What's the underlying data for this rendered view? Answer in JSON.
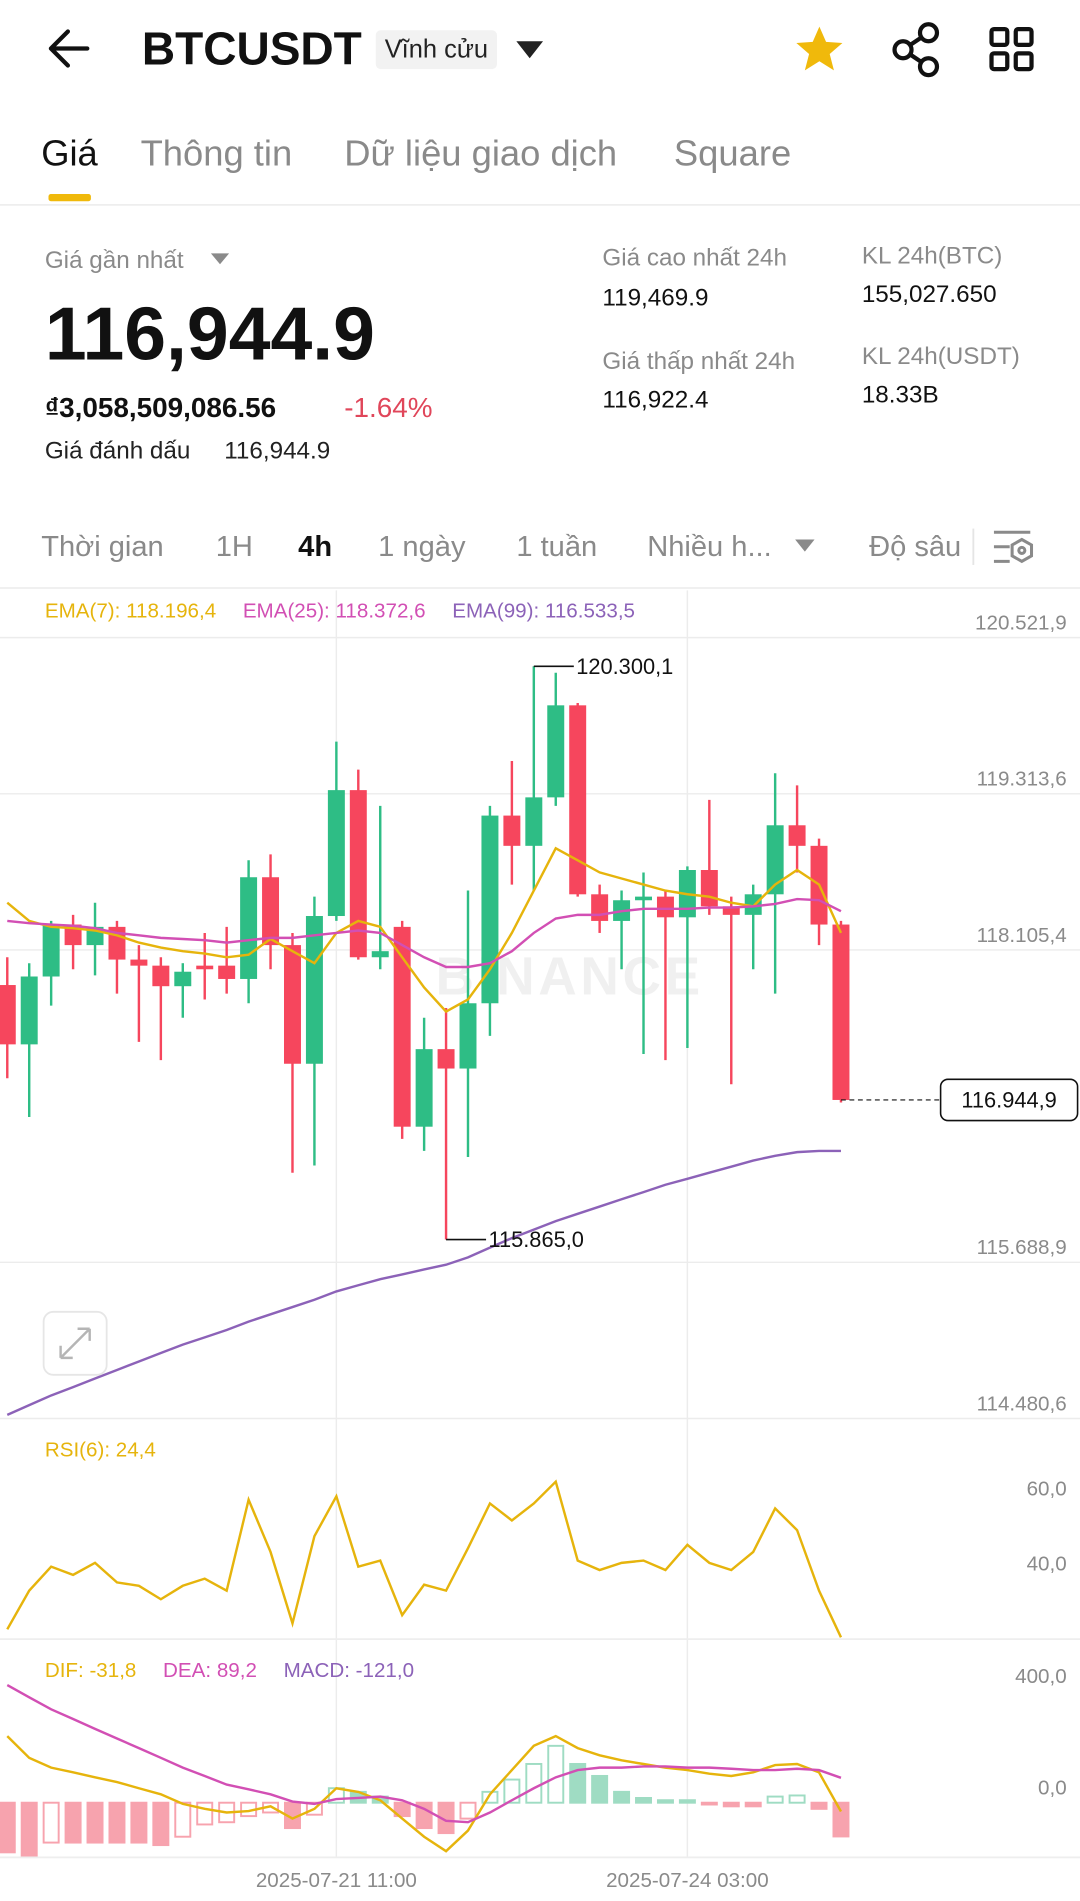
{
  "header": {
    "title": "BTCUSDT",
    "badge": "Vĩnh cửu"
  },
  "tabs": [
    "Giá",
    "Thông tin",
    "Dữ liệu giao dịch",
    "Square"
  ],
  "price": {
    "label": "Giá gần nhất",
    "last": "116,944.9",
    "fiat": "₫3,058,509,086.56",
    "change": "-1.64%",
    "mark_label": "Giá đánh dấu",
    "mark": "116,944.9"
  },
  "stats": [
    {
      "label": "Giá cao nhất 24h",
      "value": "119,469.9"
    },
    {
      "label": "Giá thấp nhất 24h",
      "value": "116,922.4"
    },
    {
      "label": "KL 24h(BTC)",
      "value": "155,027.650"
    },
    {
      "label": "KL 24h(USDT)",
      "value": "18.33B"
    }
  ],
  "intervals": [
    "Thời gian",
    "1H",
    "4h",
    "1 ngày",
    "1 tuần",
    "Nhiều h...",
    "Độ sâu"
  ],
  "chart_data": [
    {
      "type": "candlestick",
      "watermark": "BINANCE",
      "up_color": "#2ebd85",
      "down_color": "#f6465d",
      "categories": [
        null,
        null,
        null,
        null,
        null,
        null,
        null,
        null,
        null,
        null,
        null,
        null,
        null,
        null,
        null,
        "2025-07-21 11:00",
        null,
        null,
        null,
        null,
        null,
        null,
        null,
        null,
        null,
        null,
        null,
        null,
        null,
        null,
        null,
        "2025-07-24 03:00",
        null,
        null,
        null,
        null,
        null,
        null,
        null
      ],
      "open": [
        117834,
        117375,
        117900,
        118302,
        118143,
        118284,
        118031,
        117984,
        117825,
        117984,
        117984,
        117881,
        118668,
        118143,
        117225,
        118368,
        119342,
        118049,
        118284,
        116738,
        117338,
        117188,
        117693,
        119145,
        118911,
        119286,
        119998,
        118536,
        118330,
        118490,
        118518,
        118358,
        118724,
        118443,
        118377,
        118536,
        119070,
        118911,
        118302
      ],
      "high": [
        118049,
        118003,
        118330,
        118377,
        118471,
        118330,
        118143,
        118049,
        118003,
        118237,
        118284,
        118799,
        118845,
        118237,
        118518,
        119717,
        119501,
        119220,
        118330,
        117581,
        117656,
        118565,
        119220,
        119567,
        120300.1,
        120250,
        120016,
        118611,
        118565,
        118705,
        118565,
        118752,
        119267,
        118518,
        118611,
        119473,
        119379,
        118967,
        118330
      ],
      "low": [
        117113,
        116813,
        117675,
        117956,
        117909,
        117768,
        117394,
        117253,
        117581,
        117722,
        117768,
        117693,
        117956,
        116382,
        116438,
        118330,
        118031,
        117956,
        116644,
        116551,
        115865.0,
        116504,
        117441,
        118611,
        118565,
        119220,
        118518,
        118237,
        117956,
        117300,
        117253,
        117347,
        118377,
        117066,
        117956,
        117768,
        118705,
        118143,
        116925
      ],
      "close": [
        117375,
        117900,
        118302,
        118143,
        118284,
        118031,
        117984,
        117825,
        117937,
        117956,
        117881,
        118668,
        118143,
        117225,
        118368,
        119342,
        118049,
        118096,
        116738,
        117338,
        117188,
        117693,
        119145,
        118911,
        119286,
        119998,
        118536,
        118330,
        118490,
        118518,
        118358,
        118724,
        118443,
        118377,
        118536,
        119070,
        118911,
        118302,
        116944.9
      ],
      "series": [
        {
          "name": "EMA(7): 118.196,4",
          "color": "#e6b40c",
          "values": [
            118471,
            118330,
            118284,
            118274,
            118256,
            118218,
            118162,
            118124,
            118096,
            118078,
            118049,
            118068,
            118190,
            118096,
            118003,
            118237,
            118330,
            118284,
            118049,
            117815,
            117628,
            117722,
            117956,
            118237,
            118565,
            118892,
            118799,
            118705,
            118658,
            118611,
            118565,
            118536,
            118518,
            118471,
            118443,
            118611,
            118724,
            118611,
            118237
          ]
        },
        {
          "name": "EMA(25): 118.372,6",
          "color": "#d24fb4",
          "values": [
            118330,
            118312,
            118302,
            118293,
            118274,
            118237,
            118218,
            118199,
            118190,
            118181,
            118162,
            118181,
            118199,
            118199,
            118218,
            118237,
            118256,
            118237,
            118143,
            118049,
            117974,
            117974,
            118003,
            118096,
            118237,
            118349,
            118377,
            118377,
            118405,
            118424,
            118424,
            118424,
            118433,
            118433,
            118443,
            118461,
            118499,
            118490,
            118405
          ]
        },
        {
          "name": "EMA(99): 116.533,5",
          "color": "#8c62b8",
          "values": [
            114509,
            114584,
            114659,
            114724,
            114790,
            114856,
            114921,
            114987,
            115052,
            115108,
            115165,
            115230,
            115286,
            115343,
            115399,
            115464,
            115511,
            115558,
            115595,
            115633,
            115670,
            115727,
            115802,
            115876,
            115942,
            116008,
            116064,
            116120,
            116176,
            116232,
            116289,
            116335,
            116382,
            116429,
            116476,
            116513,
            116541,
            116551,
            116551
          ]
        }
      ],
      "annotations": [
        {
          "value": 120300.1,
          "label": "120.300,1"
        },
        {
          "value": 115865.0,
          "label": "115.865,0"
        }
      ],
      "last_price": {
        "value": 116944.9,
        "label": "116.944,9"
      },
      "ylim": [
        114480.6,
        120887
      ],
      "yticks": [
        {
          "value": 120521.9,
          "label": "120.521,9"
        },
        {
          "value": 119313.6,
          "label": "119.313,6"
        },
        {
          "value": 118105.4,
          "label": "118.105,4"
        },
        {
          "value": 115688.9,
          "label": "115.688,9"
        },
        {
          "value": 114480.6,
          "label": "114.480,6"
        }
      ],
      "grid": true
    },
    {
      "type": "line",
      "series": [
        {
          "name": "RSI(6): 24,4",
          "color": "#e6b40c",
          "values": [
            26.5,
            36.8,
            43.2,
            41,
            44.2,
            39,
            38.1,
            34.5,
            38.1,
            40,
            36.8,
            61,
            47.1,
            28.1,
            51.3,
            61.9,
            43.2,
            44.8,
            30.3,
            38.4,
            36.8,
            48.1,
            60,
            55.5,
            60,
            65.8,
            44.8,
            42.3,
            44.2,
            44.8,
            42.3,
            49,
            44.2,
            42.3,
            47.1,
            58.7,
            52.9,
            36.8,
            24.4
          ]
        }
      ],
      "ylim": [
        23.9,
        79.4
      ],
      "yticks": [
        {
          "value": 60,
          "label": "60,0"
        },
        {
          "value": 40,
          "label": "40,0"
        }
      ],
      "grid": false
    },
    {
      "type": "macd",
      "up_color": "#9fdcc3",
      "down_color": "#f7a3ae",
      "series": [
        {
          "name": "DIF: -31,8",
          "color": "#e6b40c",
          "values": [
            239,
            161,
            126,
            109,
            91,
            74,
            52,
            30,
            -4,
            -22,
            -35,
            -30,
            -13,
            -57,
            -22,
            52,
            39,
            9,
            -57,
            -122,
            -174,
            -100,
            30,
            117,
            204,
            239,
            196,
            170,
            152,
            139,
            126,
            117,
            104,
            96,
            109,
            135,
            139,
            109,
            -31.8
          ]
        },
        {
          "name": "DEA: 89,2",
          "color": "#d24fb4",
          "values": [
            422,
            378,
            335,
            300,
            265,
            230,
            196,
            161,
            126,
            96,
            65,
            48,
            30,
            4,
            -4,
            13,
            17,
            22,
            9,
            -22,
            -65,
            -70,
            -35,
            9,
            52,
            91,
            117,
            126,
            126,
            130,
            130,
            126,
            126,
            122,
            117,
            117,
            122,
            117,
            89.2
          ]
        },
        {
          "name": "MACD: -121,0",
          "color": "#8c62b8",
          "values": [
            -178,
            -195,
            -143,
            -143,
            -143,
            -143,
            -143,
            -152,
            -122,
            -78,
            -70,
            -48,
            -35,
            -91,
            -43,
            52,
            39,
            22,
            -48,
            -91,
            -109,
            -57,
            39,
            83,
            139,
            204,
            139,
            96,
            39,
            17,
            9,
            9,
            -4,
            -13,
            -13,
            22,
            26,
            -22,
            -121
          ]
        }
      ],
      "ylim": [
        -196,
        552
      ],
      "yticks": [
        {
          "value": 400,
          "label": "400,0"
        },
        {
          "value": 0,
          "label": "0,0"
        }
      ],
      "grid": false
    }
  ]
}
